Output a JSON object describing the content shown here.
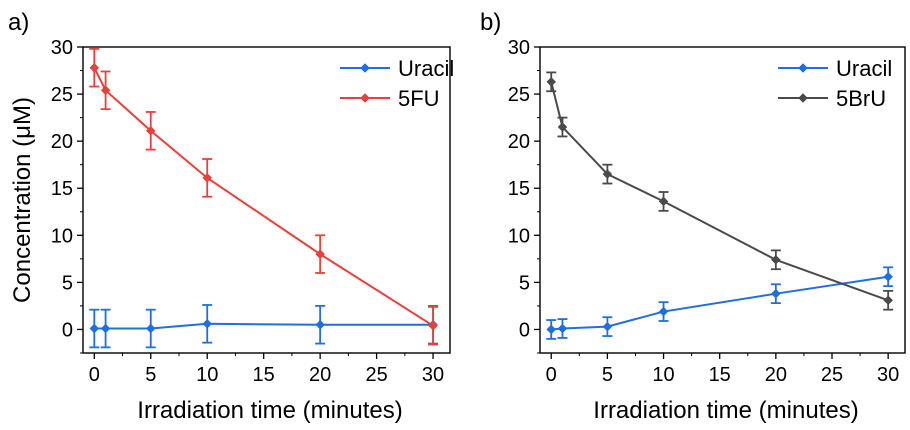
{
  "chart_data": [
    {
      "panel_label": "a)",
      "type": "line",
      "xlabel": "Irradiation time (minutes)",
      "ylabel": "Concentration (μM)",
      "xlim": [
        -1,
        31.5
      ],
      "ylim": [
        -2.5,
        30
      ],
      "xticks": [
        0,
        5,
        10,
        15,
        20,
        25,
        30
      ],
      "yticks": [
        0,
        5,
        10,
        15,
        20,
        25,
        30
      ],
      "grid": false,
      "legend_position": "top-right",
      "series": [
        {
          "name": "Uracil",
          "color": "#1f6fe0",
          "x": [
            0,
            1,
            5,
            10,
            20,
            30
          ],
          "y": [
            0.1,
            0.1,
            0.1,
            0.6,
            0.5,
            0.5
          ],
          "err": [
            2.0,
            2.0,
            2.0,
            2.0,
            2.0,
            2.0
          ]
        },
        {
          "name": "5FU",
          "color": "#e8413c",
          "x": [
            0,
            1,
            5,
            10,
            20,
            30
          ],
          "y": [
            27.8,
            25.4,
            21.1,
            16.1,
            8.0,
            0.4
          ],
          "err": [
            2.0,
            2.0,
            2.0,
            2.0,
            2.0,
            2.0
          ]
        }
      ]
    },
    {
      "panel_label": "b)",
      "type": "line",
      "xlabel": "Irradiation time (minutes)",
      "ylabel": "",
      "xlim": [
        -1,
        31.5
      ],
      "ylim": [
        -2.5,
        30
      ],
      "xticks": [
        0,
        5,
        10,
        15,
        20,
        25,
        30
      ],
      "yticks": [
        0,
        5,
        10,
        15,
        20,
        25,
        30
      ],
      "grid": false,
      "legend_position": "top-right",
      "series": [
        {
          "name": "Uracil",
          "color": "#1f6fe0",
          "x": [
            0,
            1,
            5,
            10,
            20,
            30
          ],
          "y": [
            0.0,
            0.1,
            0.3,
            1.9,
            3.8,
            5.6
          ],
          "err": [
            1.0,
            1.0,
            1.0,
            1.0,
            1.0,
            1.0
          ]
        },
        {
          "name": "5BrU",
          "color": "#4a4a4a",
          "x": [
            0,
            1,
            5,
            10,
            20,
            30
          ],
          "y": [
            26.3,
            21.5,
            16.5,
            13.6,
            7.4,
            3.1
          ],
          "err": [
            1.0,
            1.0,
            1.0,
            1.0,
            1.0,
            1.0
          ]
        }
      ]
    }
  ]
}
